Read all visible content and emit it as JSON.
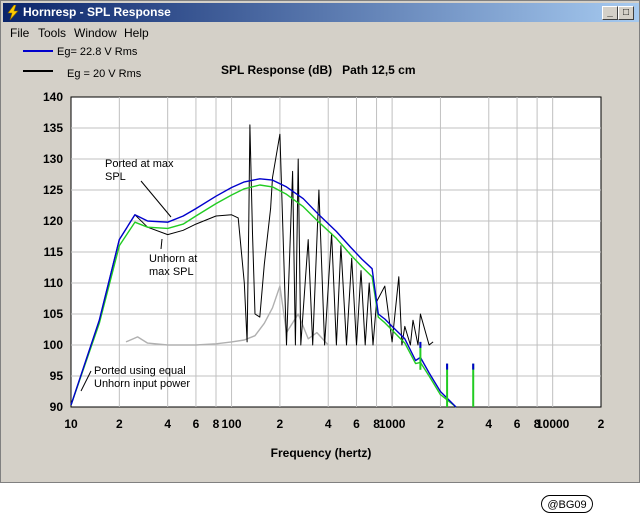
{
  "window": {
    "title": "Hornresp - SPL Response",
    "menu": [
      "File",
      "Tools",
      "Window",
      "Help"
    ]
  },
  "legend": [
    {
      "label": "Eg= 22.8 V Rms",
      "color": "#0000cc"
    },
    {
      "label": "Eg = 20 V Rms",
      "color": "#000000"
    }
  ],
  "colors": {
    "ported_curve": "#0000cc",
    "unhorn_curve": "#000000",
    "equal_power_curve": "#22cc22",
    "faint_curve": "#b0b0b0"
  },
  "chart_data": {
    "type": "line",
    "title": "SPL Response (dB)   Path 12,5 cm",
    "xlabel": "Frequency (hertz)",
    "x_scale": "log",
    "xlim": [
      10,
      20000
    ],
    "ylim": [
      90,
      140
    ],
    "grid": true,
    "x_tick_labels": [
      "10",
      "2",
      "4",
      "6",
      "8",
      "100",
      "2",
      "4",
      "6",
      "8",
      "1000",
      "2",
      "4",
      "6",
      "8",
      "10000",
      "2"
    ],
    "y_ticks": [
      90,
      95,
      100,
      105,
      110,
      115,
      120,
      125,
      130,
      135,
      140
    ],
    "annotations": [
      {
        "text": "Ported at max SPL",
        "lines": [
          "Ported at max",
          "SPL"
        ]
      },
      {
        "text": "Unhorn at max SPL",
        "lines": [
          "Unhorn at",
          "max SPL"
        ]
      },
      {
        "text": "Ported using equal Unhorn input power",
        "lines": [
          "Ported using equal",
          "Unhorn input power"
        ]
      }
    ],
    "series": [
      {
        "name": "Eg= 22.8 V Rms",
        "color": "#0000cc",
        "x": [
          10,
          15,
          20,
          25,
          30,
          40,
          50,
          60,
          80,
          100,
          120,
          150,
          180,
          220,
          280,
          350,
          450,
          550,
          650,
          750,
          820,
          900,
          1000,
          1200,
          1400,
          1500,
          1700,
          2000,
          2500
        ],
        "y": [
          90.3,
          104,
          117,
          121,
          120,
          119.8,
          120.8,
          122,
          124,
          125.4,
          126.3,
          126.8,
          126.6,
          125.5,
          123.6,
          121,
          118.3,
          115.8,
          113.8,
          112.3,
          105,
          104.2,
          103,
          101,
          97.5,
          98,
          95.5,
          92.5,
          90
        ]
      },
      {
        "name": "Eg = 20 V Rms",
        "color": "#000000",
        "x": [
          10,
          15,
          20,
          25,
          30,
          40,
          50,
          60,
          80,
          100,
          110,
          120,
          125,
          128,
          130,
          135,
          140,
          150,
          160,
          175,
          180,
          200,
          220,
          240,
          250,
          260,
          270,
          300,
          320,
          350,
          380,
          420,
          450,
          480,
          520,
          560,
          600,
          640,
          680,
          720,
          760,
          800,
          900,
          1000,
          1100,
          1150,
          1200,
          1300,
          1350,
          1450,
          1500,
          1700,
          1800
        ],
        "y": [
          90.3,
          104,
          117,
          121,
          119,
          117.8,
          118.5,
          119.5,
          120.8,
          121,
          120.5,
          110,
          100.5,
          120,
          135.5,
          118,
          105,
          104.5,
          113,
          122,
          127,
          134,
          100,
          128,
          100,
          130,
          100,
          117,
          100,
          125,
          100,
          118,
          100,
          116,
          100,
          114,
          100,
          112,
          100,
          110,
          100,
          107,
          109.5,
          100.5,
          111,
          100,
          103,
          100,
          104,
          100,
          105,
          100,
          100.5
        ]
      },
      {
        "name": "",
        "color": "#22cc22",
        "x": [
          10,
          15,
          20,
          25,
          30,
          40,
          50,
          60,
          80,
          100,
          120,
          150,
          180,
          220,
          280,
          350,
          450,
          550,
          650,
          750,
          820,
          900,
          1000,
          1200,
          1400,
          1500,
          1700,
          2000,
          2500
        ],
        "y": [
          90.3,
          103.5,
          116,
          119.8,
          119,
          118.8,
          119.5,
          120.8,
          122.8,
          124.2,
          125.2,
          125.8,
          125.5,
          124.3,
          122.3,
          119.8,
          117.2,
          114.6,
          112.6,
          111,
          104.5,
          103.6,
          102.4,
          100.3,
          97,
          97.2,
          95,
          92,
          90
        ]
      },
      {
        "name": "",
        "color": "#b0b0b0",
        "x": [
          22,
          26,
          30,
          40,
          60,
          80,
          100,
          120,
          140,
          160,
          180,
          200,
          220,
          260,
          300,
          340,
          400
        ],
        "y": [
          100.5,
          101.3,
          100.3,
          100,
          100,
          100.2,
          100.5,
          100.8,
          101.5,
          103.5,
          106,
          109.5,
          102,
          105,
          101,
          102,
          100
        ]
      }
    ],
    "spikes": [
      {
        "x": 1500,
        "top": 100.5,
        "bottom": 96
      },
      {
        "x": 2200,
        "top": 97,
        "bottom": 90
      },
      {
        "x": 3200,
        "top": 97,
        "bottom": 90
      }
    ]
  },
  "signature": "@BG09"
}
